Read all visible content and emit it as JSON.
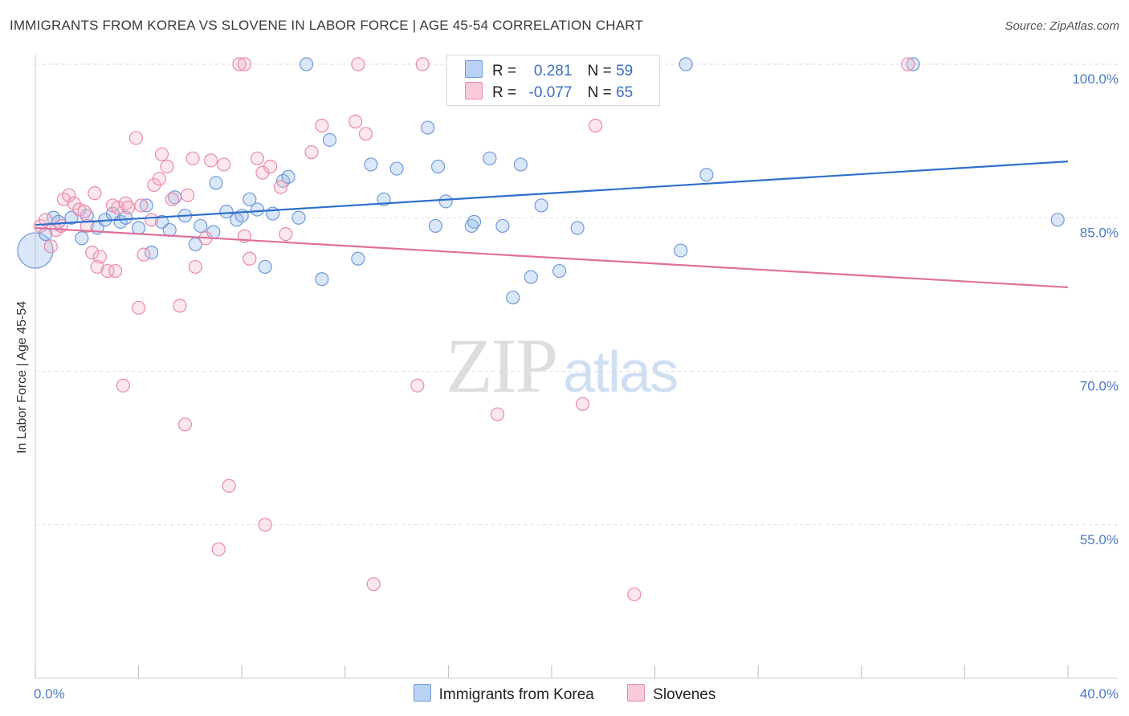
{
  "title": "IMMIGRANTS FROM KOREA VS SLOVENE IN LABOR FORCE | AGE 45-54 CORRELATION CHART",
  "source": "Source: ZipAtlas.com",
  "watermark": {
    "zip": "ZIP",
    "atlas": "atlas"
  },
  "stats": [
    {
      "r_label": "R =",
      "r_value": "0.281",
      "n_label": "N =",
      "n_value": "59",
      "color": "#a9c4ec",
      "border": "#6f9ad8"
    },
    {
      "r_label": "R =",
      "r_value": "-0.077",
      "n_label": "N =",
      "n_value": "65",
      "color": "#f7bfd0",
      "border": "#e98aa8"
    }
  ],
  "legend": [
    {
      "label": "Immigrants from Korea",
      "color": "#b9d1f3",
      "border": "#6f9ad8"
    },
    {
      "label": "Slovenes",
      "color": "#f9cbd8",
      "border": "#e98aa8"
    }
  ],
  "colors": {
    "korea_stroke": "#6f9ad8",
    "korea_fill": "rgba(150,185,235,0.35)",
    "korea_line": "#2f6fcc",
    "slovene_stroke": "#e98aa8",
    "slovene_fill": "rgba(245,175,198,0.30)",
    "slovene_line": "#e0709a",
    "tick": "#4b7ac8",
    "grid": "#dddddd"
  },
  "chart_data": {
    "type": "scatter",
    "title": "IMMIGRANTS FROM KOREA VS SLOVENE IN LABOR FORCE | AGE 45-54 CORRELATION CHART",
    "xlabel": "",
    "ylabel": "In Labor Force | Age 45-54",
    "xlim": [
      0,
      40
    ],
    "ylim": [
      40,
      100
    ],
    "x_tick_labels": [
      "0.0%",
      "40.0%"
    ],
    "y_ticks": [
      55,
      70,
      85,
      100
    ],
    "y_tick_labels": [
      "55.0%",
      "70.0%",
      "85.0%",
      "100.0%"
    ],
    "grid": true,
    "legend_position": "bottom",
    "series": [
      {
        "name": "Immigrants from Korea",
        "trend": [
          [
            0,
            84.3
          ],
          [
            40,
            90.5
          ]
        ],
        "points": [
          [
            0.0,
            81.8
          ],
          [
            0.4,
            83.4
          ],
          [
            0.7,
            85.0
          ],
          [
            0.9,
            84.6
          ],
          [
            1.4,
            85.0
          ],
          [
            1.8,
            83.0
          ],
          [
            2.0,
            85.2
          ],
          [
            2.4,
            84.0
          ],
          [
            2.7,
            84.8
          ],
          [
            3.0,
            85.4
          ],
          [
            3.3,
            84.6
          ],
          [
            3.5,
            85.0
          ],
          [
            4.0,
            84.0
          ],
          [
            4.3,
            86.2
          ],
          [
            4.5,
            81.6
          ],
          [
            4.9,
            84.6
          ],
          [
            5.2,
            83.8
          ],
          [
            5.4,
            87.0
          ],
          [
            5.8,
            85.2
          ],
          [
            6.2,
            82.4
          ],
          [
            6.4,
            84.2
          ],
          [
            6.9,
            83.6
          ],
          [
            7.0,
            88.4
          ],
          [
            7.4,
            85.6
          ],
          [
            7.8,
            84.8
          ],
          [
            8.0,
            85.2
          ],
          [
            8.3,
            86.8
          ],
          [
            8.6,
            85.8
          ],
          [
            8.9,
            80.2
          ],
          [
            9.2,
            85.4
          ],
          [
            9.6,
            88.6
          ],
          [
            9.8,
            89.0
          ],
          [
            10.2,
            85.0
          ],
          [
            10.5,
            100.0
          ],
          [
            11.1,
            79.0
          ],
          [
            11.4,
            92.6
          ],
          [
            12.5,
            81.0
          ],
          [
            13.0,
            90.2
          ],
          [
            13.5,
            86.8
          ],
          [
            14.0,
            89.8
          ],
          [
            15.2,
            93.8
          ],
          [
            15.5,
            84.2
          ],
          [
            15.6,
            90.0
          ],
          [
            15.9,
            86.6
          ],
          [
            16.9,
            84.2
          ],
          [
            17.0,
            84.6
          ],
          [
            17.6,
            90.8
          ],
          [
            18.1,
            84.2
          ],
          [
            18.5,
            77.2
          ],
          [
            18.8,
            90.2
          ],
          [
            19.2,
            79.2
          ],
          [
            19.6,
            86.2
          ],
          [
            20.3,
            79.8
          ],
          [
            21.0,
            84.0
          ],
          [
            25.0,
            81.8
          ],
          [
            25.2,
            100.0
          ],
          [
            26.0,
            89.2
          ],
          [
            34.0,
            100.0
          ],
          [
            39.6,
            84.8
          ]
        ]
      },
      {
        "name": "Slovenes",
        "trend": [
          [
            0,
            84.0
          ],
          [
            40,
            78.2
          ]
        ],
        "points": [
          [
            0.2,
            84.2
          ],
          [
            0.4,
            84.8
          ],
          [
            0.6,
            82.2
          ],
          [
            0.8,
            83.8
          ],
          [
            1.0,
            84.2
          ],
          [
            1.1,
            86.8
          ],
          [
            1.3,
            87.2
          ],
          [
            1.5,
            86.4
          ],
          [
            1.7,
            85.8
          ],
          [
            1.9,
            85.6
          ],
          [
            2.0,
            84.2
          ],
          [
            2.2,
            81.6
          ],
          [
            2.3,
            87.4
          ],
          [
            2.4,
            80.2
          ],
          [
            2.5,
            81.2
          ],
          [
            2.8,
            79.8
          ],
          [
            3.0,
            86.2
          ],
          [
            3.1,
            79.8
          ],
          [
            3.2,
            86.0
          ],
          [
            3.4,
            68.6
          ],
          [
            3.5,
            86.4
          ],
          [
            3.6,
            86.0
          ],
          [
            3.9,
            92.8
          ],
          [
            4.0,
            76.2
          ],
          [
            4.1,
            86.2
          ],
          [
            4.2,
            81.4
          ],
          [
            4.5,
            84.8
          ],
          [
            4.6,
            88.2
          ],
          [
            4.8,
            88.8
          ],
          [
            4.9,
            91.2
          ],
          [
            5.1,
            90.0
          ],
          [
            5.3,
            86.8
          ],
          [
            5.6,
            76.4
          ],
          [
            5.8,
            64.8
          ],
          [
            5.9,
            87.2
          ],
          [
            6.1,
            90.8
          ],
          [
            6.2,
            80.2
          ],
          [
            6.6,
            83.0
          ],
          [
            6.8,
            90.6
          ],
          [
            7.1,
            52.6
          ],
          [
            7.3,
            90.2
          ],
          [
            7.5,
            58.8
          ],
          [
            7.9,
            100.0
          ],
          [
            8.1,
            100.0
          ],
          [
            8.1,
            83.2
          ],
          [
            8.3,
            81.0
          ],
          [
            8.6,
            90.8
          ],
          [
            8.8,
            89.4
          ],
          [
            8.9,
            55.0
          ],
          [
            9.1,
            90.0
          ],
          [
            9.5,
            88.0
          ],
          [
            9.7,
            83.4
          ],
          [
            10.7,
            91.4
          ],
          [
            11.1,
            94.0
          ],
          [
            12.4,
            94.4
          ],
          [
            12.5,
            100.0
          ],
          [
            12.8,
            93.2
          ],
          [
            13.1,
            49.2
          ],
          [
            14.8,
            68.6
          ],
          [
            15.0,
            100.0
          ],
          [
            17.9,
            65.8
          ],
          [
            21.2,
            66.8
          ],
          [
            21.7,
            94.0
          ],
          [
            23.2,
            48.2
          ],
          [
            33.8,
            100.0
          ]
        ]
      }
    ]
  }
}
